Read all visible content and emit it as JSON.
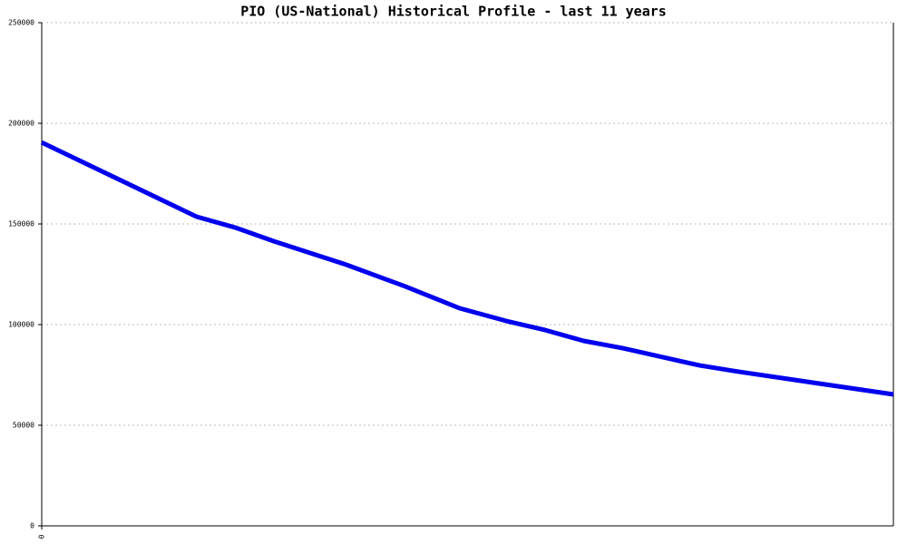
{
  "chart_data": {
    "type": "line",
    "title": "PIO (US-National) Historical Profile - last 11 years",
    "x": [
      0,
      2,
      2.5,
      3,
      3.9,
      4.7,
      5.4,
      6,
      6.5,
      7,
      7.5,
      8.5,
      9,
      11
    ],
    "series": [
      {
        "color": "#0000ee",
        "values": [
          190500,
          153600,
          148200,
          141400,
          130200,
          118900,
          108100,
          101800,
          97300,
          91900,
          88300,
          79700,
          76600,
          65300
        ]
      }
    ],
    "xlim": [
      0,
      11
    ],
    "xticks": [
      0
    ],
    "ylim": [
      0,
      250000
    ],
    "yticks": [
      0,
      50000,
      100000,
      150000,
      200000,
      250000
    ],
    "grid": true
  }
}
